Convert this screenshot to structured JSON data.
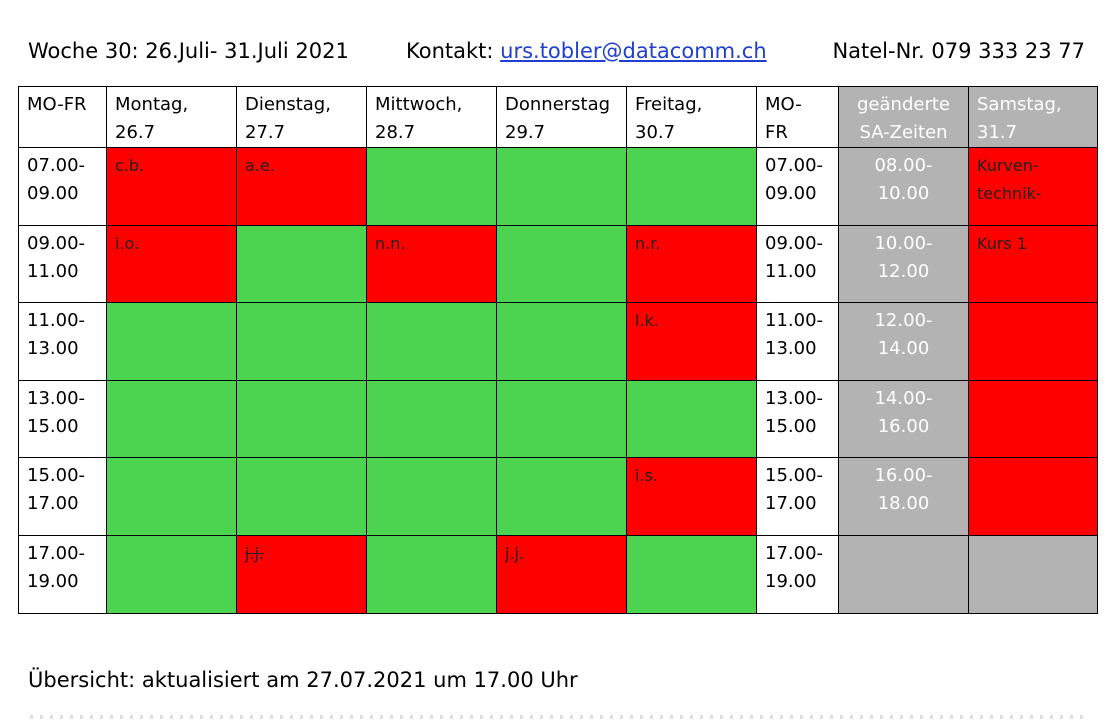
{
  "header": {
    "week": "Woche 30: 26.Juli- 31.Juli 2021",
    "contact_label": "Kontakt: ",
    "email": "urs.tobler@datacomm.ch",
    "phone": "Natel-Nr. 079 333 23 77"
  },
  "colors": {
    "free": "#4cd350",
    "booked": "#ff0000",
    "gray": "#b3b3b3",
    "link": "#1f3fd0"
  },
  "columns": [
    {
      "line1": "MO-FR",
      "line2": ""
    },
    {
      "line1": "Montag,",
      "line2": "26.7"
    },
    {
      "line1": "Dienstag,",
      "line2": "27.7"
    },
    {
      "line1": "Mittwoch,",
      "line2": "28.7"
    },
    {
      "line1": "Donnerstag",
      "line2": "29.7"
    },
    {
      "line1": "Freitag,",
      "line2": "30.7"
    },
    {
      "line1": "MO-",
      "line2": "FR"
    },
    {
      "line1": "geänderte",
      "line2": "SA-Zeiten"
    },
    {
      "line1": "Samstag,",
      "line2": "31.7"
    }
  ],
  "rows": [
    {
      "time_start": "07.00-",
      "time_end": "09.00",
      "days": [
        {
          "status": "booked",
          "text": "c.b."
        },
        {
          "status": "booked",
          "text": "a.e."
        },
        {
          "status": "free",
          "text": ""
        },
        {
          "status": "free",
          "text": ""
        },
        {
          "status": "free",
          "text": ""
        }
      ],
      "sa_start": "08.00-",
      "sa_end": "10.00",
      "saturday": {
        "status": "booked",
        "text": "Kurven-",
        "text2": "technik-"
      }
    },
    {
      "time_start": "09.00-",
      "time_end": "11.00",
      "days": [
        {
          "status": "booked",
          "text": "i.o."
        },
        {
          "status": "free",
          "text": ""
        },
        {
          "status": "booked",
          "text": "n.n."
        },
        {
          "status": "free",
          "text": ""
        },
        {
          "status": "booked",
          "text": "n.r."
        }
      ],
      "sa_start": "10.00-",
      "sa_end": "12.00",
      "saturday": {
        "status": "booked",
        "text": "Kurs 1",
        "text2": ""
      }
    },
    {
      "time_start": "11.00-",
      "time_end": "13.00",
      "days": [
        {
          "status": "free",
          "text": ""
        },
        {
          "status": "free",
          "text": ""
        },
        {
          "status": "free",
          "text": ""
        },
        {
          "status": "free",
          "text": ""
        },
        {
          "status": "booked",
          "text": "l.k."
        }
      ],
      "sa_start": "12.00-",
      "sa_end": "14.00",
      "saturday": {
        "status": "booked",
        "text": "",
        "text2": ""
      }
    },
    {
      "time_start": "13.00-",
      "time_end": "15.00",
      "days": [
        {
          "status": "free",
          "text": ""
        },
        {
          "status": "free",
          "text": ""
        },
        {
          "status": "free",
          "text": ""
        },
        {
          "status": "free",
          "text": ""
        },
        {
          "status": "free",
          "text": ""
        }
      ],
      "sa_start": "14.00-",
      "sa_end": "16.00",
      "saturday": {
        "status": "booked",
        "text": "",
        "text2": ""
      }
    },
    {
      "time_start": "15.00-",
      "time_end": "17.00",
      "days": [
        {
          "status": "free",
          "text": ""
        },
        {
          "status": "free",
          "text": ""
        },
        {
          "status": "free",
          "text": ""
        },
        {
          "status": "free",
          "text": ""
        },
        {
          "status": "booked",
          "text": "i.s."
        }
      ],
      "sa_start": "16.00-",
      "sa_end": "18.00",
      "saturday": {
        "status": "booked",
        "text": "",
        "text2": ""
      }
    },
    {
      "time_start": "17.00-",
      "time_end": "19.00",
      "days": [
        {
          "status": "free",
          "text": ""
        },
        {
          "status": "booked",
          "text": "j.j.",
          "strike": true
        },
        {
          "status": "free",
          "text": ""
        },
        {
          "status": "booked",
          "text": "j.j."
        },
        {
          "status": "free",
          "text": ""
        }
      ],
      "sa_start": "",
      "sa_end": "",
      "saturday": {
        "status": "gray",
        "text": "",
        "text2": ""
      }
    }
  ],
  "footer": {
    "text": "Übersicht: aktualisiert am 27.07.2021 um 17.00 Uhr"
  }
}
